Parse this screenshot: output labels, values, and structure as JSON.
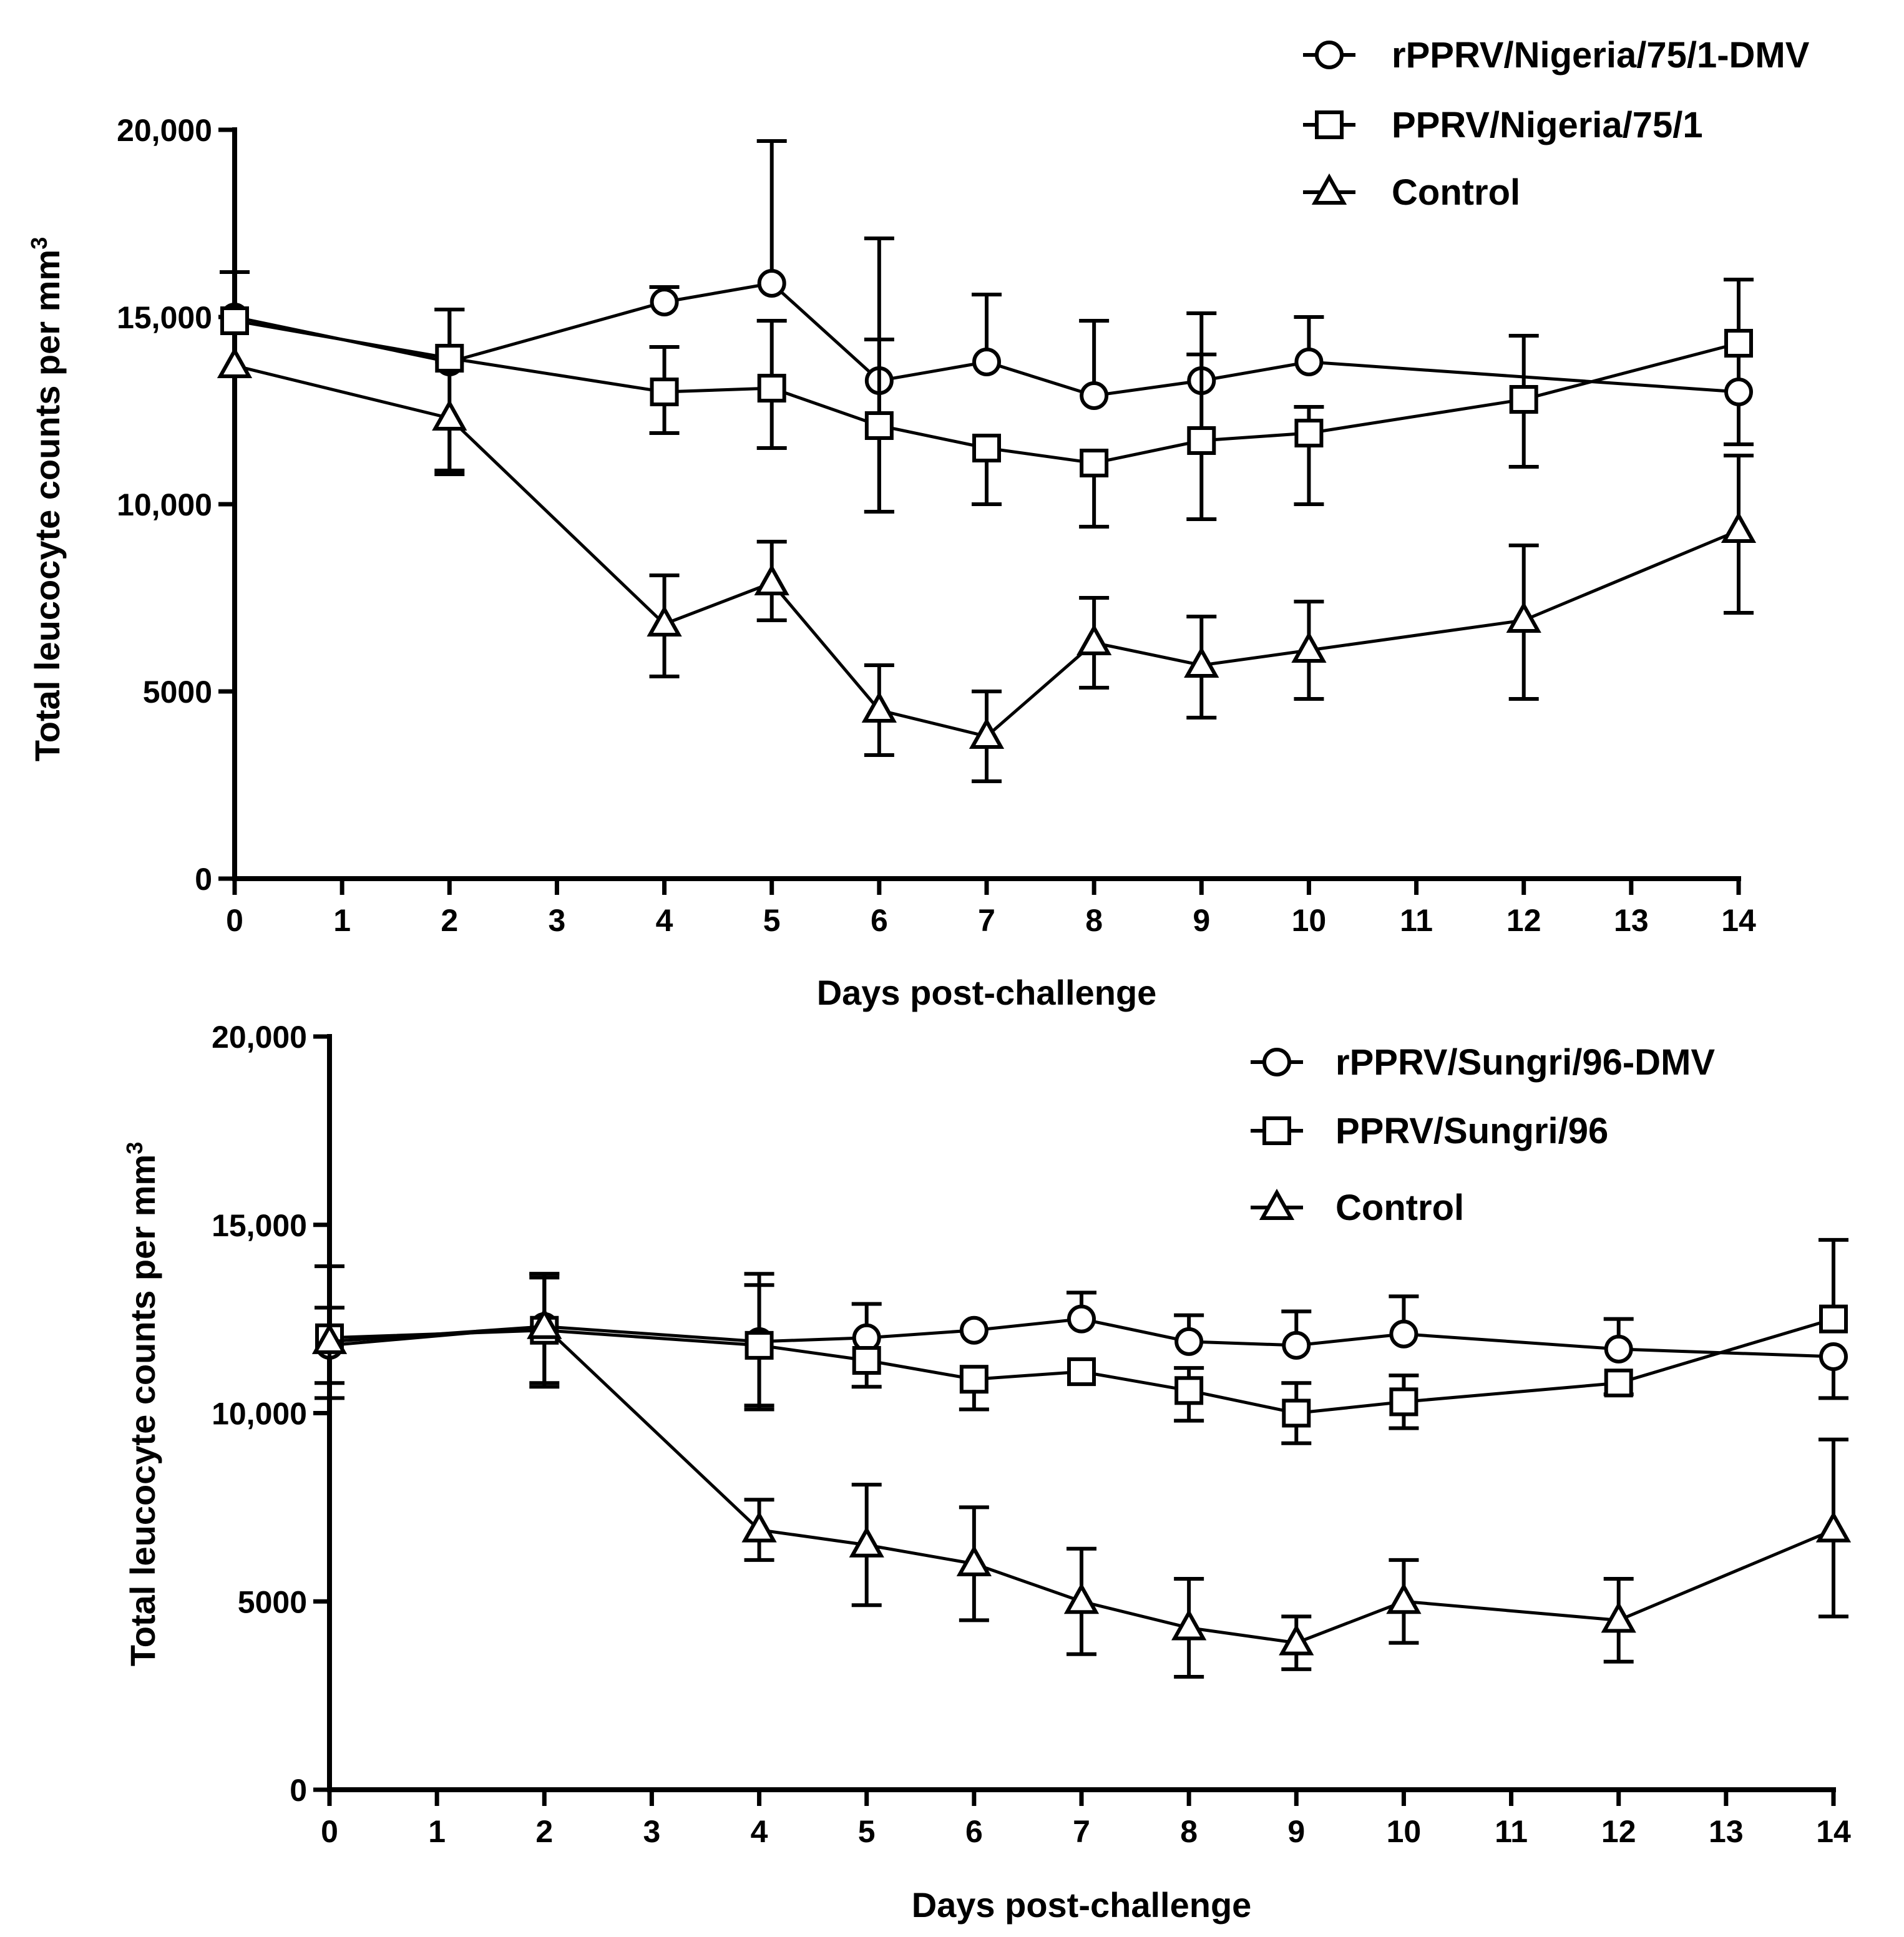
{
  "chart_data": [
    {
      "type": "line",
      "title": "",
      "xlabel": "Days post-challenge",
      "ylabel": "Total leucocyte counts per mm",
      "ylabel_superscript": "3",
      "xlim": [
        0,
        14
      ],
      "ylim": [
        0,
        20000
      ],
      "x_ticks": [
        0,
        1,
        2,
        3,
        4,
        5,
        6,
        7,
        8,
        9,
        10,
        11,
        12,
        13,
        14
      ],
      "x_tick_labels": [
        "0",
        "1",
        "2",
        "3",
        "4",
        "5",
        "6",
        "7",
        "8",
        "9",
        "10",
        "11",
        "12",
        "13",
        "14"
      ],
      "y_ticks": [
        0,
        5000,
        10000,
        15000,
        20000
      ],
      "y_tick_labels": [
        "0",
        "5000",
        "10,000",
        "15,000",
        "20,000"
      ],
      "legend_position": "top-right",
      "series": [
        {
          "name": "rPPRV/Nigeria/75/1-DMV",
          "marker": "circle",
          "x": [
            0,
            2,
            4,
            5,
            6,
            7,
            8,
            9,
            10,
            14
          ],
          "y": [
            15000,
            13800,
            15400,
            15900,
            13300,
            13800,
            12900,
            13300,
            13800,
            13000
          ],
          "err_up": [
            1200,
            1400,
            400,
            3800,
            3800,
            1800,
            2000,
            1800,
            1200,
            3000
          ],
          "err_down": [
            0,
            0,
            0,
            0,
            3500,
            0,
            0,
            0,
            0,
            1400
          ]
        },
        {
          "name": "PPRV/Nigeria/75/1",
          "marker": "square",
          "x": [
            0,
            2,
            4,
            5,
            6,
            7,
            8,
            9,
            10,
            12,
            14
          ],
          "y": [
            14900,
            13900,
            13000,
            13100,
            12100,
            11500,
            11100,
            11700,
            11900,
            12800,
            14300
          ],
          "err_up": [
            0,
            1300,
            1200,
            1800,
            2300,
            0,
            0,
            2300,
            700,
            1700,
            1700
          ],
          "err_down": [
            0,
            3000,
            1100,
            1600,
            2300,
            1500,
            1700,
            2100,
            1900,
            1800,
            0
          ]
        },
        {
          "name": "Control",
          "marker": "triangle",
          "x": [
            0,
            2,
            4,
            5,
            6,
            7,
            8,
            9,
            10,
            12,
            14
          ],
          "y": [
            13700,
            12300,
            6800,
            7900,
            4500,
            3800,
            6300,
            5700,
            6100,
            6900,
            9300
          ],
          "err_up": [
            0,
            0,
            1300,
            1100,
            1200,
            1200,
            1200,
            1300,
            1300,
            2000,
            2000
          ],
          "err_down": [
            0,
            1500,
            1400,
            1000,
            1200,
            1200,
            1200,
            1400,
            1300,
            2100,
            2200
          ]
        }
      ]
    },
    {
      "type": "line",
      "title": "",
      "xlabel": "Days post-challenge",
      "ylabel": "Total leucocyte counts per mm",
      "ylabel_superscript": "3",
      "xlim": [
        0,
        14
      ],
      "ylim": [
        0,
        20000
      ],
      "x_ticks": [
        0,
        1,
        2,
        3,
        4,
        5,
        6,
        7,
        8,
        9,
        10,
        11,
        12,
        13,
        14
      ],
      "x_tick_labels": [
        "0",
        "1",
        "2",
        "3",
        "4",
        "5",
        "6",
        "7",
        "8",
        "9",
        "10",
        "11",
        "12",
        "13",
        "14"
      ],
      "y_ticks": [
        0,
        5000,
        10000,
        15000,
        20000
      ],
      "y_tick_labels": [
        "0",
        "5000",
        "10,000",
        "15,000",
        "20,000"
      ],
      "legend_position": "top-right",
      "series": [
        {
          "name": "rPPRV/Sungri/96-DMV",
          "marker": "circle",
          "x": [
            0,
            2,
            4,
            5,
            6,
            7,
            8,
            9,
            10,
            12,
            14
          ],
          "y": [
            11800,
            12300,
            11900,
            12000,
            12200,
            12500,
            11900,
            11800,
            12100,
            11700,
            11500
          ],
          "err_up": [
            2100,
            1400,
            1800,
            900,
            0,
            700,
            700,
            900,
            1000,
            800,
            0
          ],
          "err_down": [
            1400,
            1600,
            1800,
            0,
            0,
            0,
            0,
            0,
            0,
            0,
            1100
          ]
        },
        {
          "name": "PPRV/Sungri/96",
          "marker": "square",
          "x": [
            0,
            2,
            4,
            5,
            6,
            7,
            8,
            9,
            10,
            12,
            14
          ],
          "y": [
            12000,
            12200,
            11800,
            11400,
            10900,
            11100,
            10600,
            10000,
            10300,
            10800,
            12500
          ],
          "err_up": [
            800,
            1400,
            1600,
            0,
            0,
            0,
            600,
            800,
            700,
            0,
            2100
          ],
          "err_down": [
            1200,
            1400,
            1600,
            700,
            800,
            0,
            800,
            800,
            700,
            300,
            0
          ]
        },
        {
          "name": "Control",
          "marker": "triangle",
          "x": [
            0,
            2,
            4,
            5,
            6,
            7,
            8,
            9,
            10,
            12,
            14
          ],
          "y": [
            11900,
            12300,
            6900,
            6500,
            6000,
            5000,
            4300,
            3900,
            5000,
            4500,
            6900
          ],
          "err_up": [
            0,
            1400,
            800,
            1600,
            1500,
            1400,
            1300,
            700,
            1100,
            1100,
            2400
          ],
          "err_down": [
            0,
            0,
            800,
            1600,
            1500,
            1400,
            1300,
            700,
            1100,
            1100,
            2300
          ]
        }
      ]
    }
  ]
}
